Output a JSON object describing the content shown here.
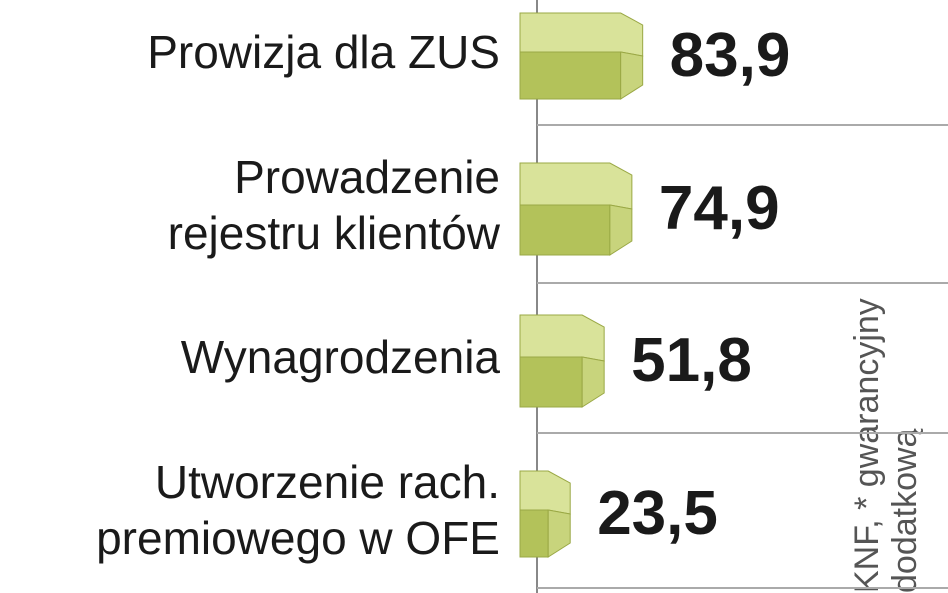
{
  "chart_data": {
    "type": "bar3d",
    "orientation": "horizontal",
    "categories": [
      [
        "Prowizja dla ZUS"
      ],
      [
        "Prowadzenie",
        "rejestru klientów"
      ],
      [
        "Wynagrodzenia"
      ],
      [
        "Utworzenie rach.",
        "premiowego w OFE"
      ]
    ],
    "values": [
      83.9,
      74.9,
      51.8,
      23.5
    ],
    "value_labels": [
      "83,9",
      "74,9",
      "51,8",
      "23,5"
    ],
    "xlim": [
      0,
      100
    ],
    "colors": {
      "top": "#d9e39a",
      "front": "#b3c25a",
      "side": "#c8d47c"
    },
    "side_notes": [
      "KNF, * gwarancyjny",
      "dodatkową"
    ]
  }
}
